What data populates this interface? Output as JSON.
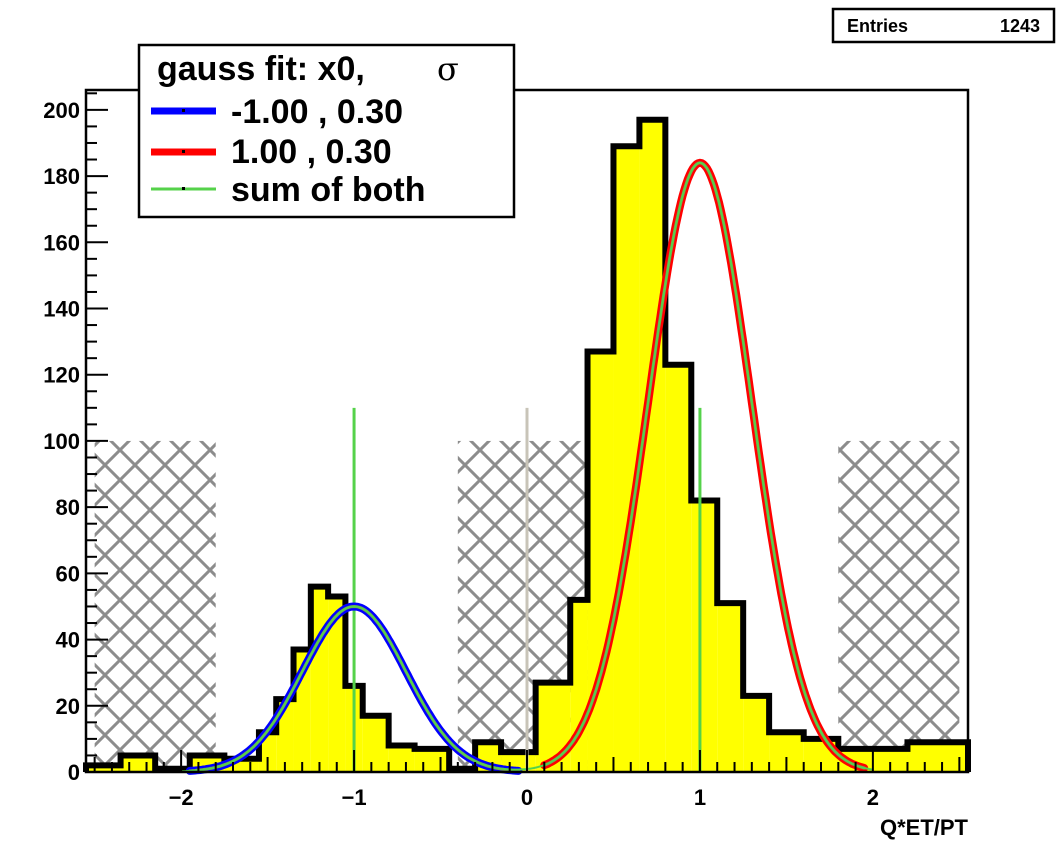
{
  "stats_box": {
    "label": "Entries",
    "value": "1243"
  },
  "legend": {
    "header": "gauss fit: x0,",
    "header_symbol": "σ",
    "entries": [
      {
        "label": "-1.00 , 0.30",
        "color": "#0000ff"
      },
      {
        "label": "1.00 , 0.30",
        "color": "#ff0000"
      },
      {
        "label": "sum of both",
        "color": "#55d24a"
      }
    ]
  },
  "colors": {
    "histogram_fill": "#ffff00",
    "histogram_outline": "#000000",
    "hatch": "#8c8c8c",
    "center_line": "#c8c4b8",
    "marker_line": "#55d24a",
    "fit_outline": "#7a9c52"
  },
  "chart_data": {
    "type": "bar",
    "xlabel": "Q*ET/PT",
    "ylabel": "",
    "xlim": [
      -2.55,
      2.55
    ],
    "ylim": [
      0,
      206
    ],
    "x_ticks": [
      {
        "value": -2,
        "label": "−2"
      },
      {
        "value": -1,
        "label": "−1"
      },
      {
        "value": 0,
        "label": "0"
      },
      {
        "value": 1,
        "label": "1"
      },
      {
        "value": 2,
        "label": "2"
      }
    ],
    "y_ticks": [
      0,
      20,
      40,
      60,
      80,
      100,
      120,
      140,
      160,
      180,
      200
    ],
    "grid": false,
    "histogram": {
      "bin_edges": [
        -2.55,
        -2.35,
        -2.15,
        -1.95,
        -1.75,
        -1.55,
        -1.45,
        -1.35,
        -1.25,
        -1.15,
        -1.05,
        -0.95,
        -0.8,
        -0.65,
        -0.45,
        -0.3,
        -0.15,
        0.05,
        0.25,
        0.35,
        0.5,
        0.65,
        0.8,
        0.95,
        1.1,
        1.25,
        1.4,
        1.6,
        1.8,
        2.0,
        2.2,
        2.55
      ],
      "counts": [
        2,
        5,
        1,
        5,
        4,
        12,
        22,
        37,
        56,
        53,
        26,
        17,
        8,
        7,
        1,
        9,
        6,
        27,
        52,
        127,
        189,
        197,
        123,
        82,
        51,
        23,
        12,
        10,
        7,
        7,
        9
      ]
    },
    "fits": [
      {
        "name": "-1.00 , 0.30",
        "x0": -1.0,
        "sigma": 0.3,
        "amplitude": 50,
        "color": "#0000ff"
      },
      {
        "name": "1.00 , 0.30",
        "x0": 1.0,
        "sigma": 0.3,
        "amplitude": 184,
        "color": "#ff0000"
      }
    ],
    "sum_curve": {
      "name": "sum of both",
      "color": "#55d24a"
    },
    "excluded_regions": [
      {
        "from": -2.5,
        "to": -1.8,
        "height": 100
      },
      {
        "from": -0.4,
        "to": 0.4,
        "height": 100
      },
      {
        "from": 1.8,
        "to": 2.5,
        "height": 100
      }
    ],
    "vertical_markers": [
      {
        "x": -1,
        "height": 110,
        "color": "#55d24a"
      },
      {
        "x": 0,
        "height": 110,
        "color": "#c8c4b8"
      },
      {
        "x": 1,
        "height": 110,
        "color": "#55d24a"
      }
    ]
  }
}
